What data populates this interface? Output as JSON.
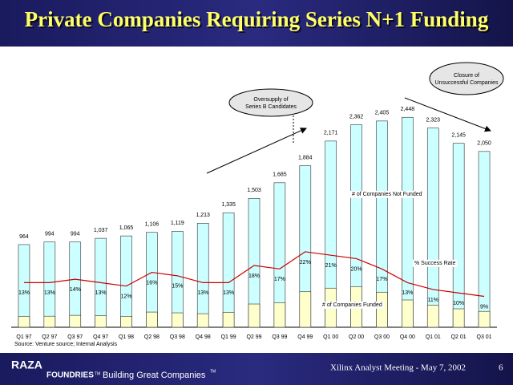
{
  "chart_data": {
    "type": "bar",
    "title": "Private Companies Requiring Series N+1 Funding",
    "categories": [
      "Q1 97",
      "Q2 97",
      "Q3 97",
      "Q4 97",
      "Q1 98",
      "Q2 98",
      "Q3 98",
      "Q4 98",
      "Q1 99",
      "Q2 99",
      "Q3 99",
      "Q4 99",
      "Q1 00",
      "Q2 00",
      "Q3 00",
      "Q4 00",
      "Q1 01",
      "Q2 01",
      "Q3 01"
    ],
    "series": [
      {
        "name": "# of Companies Not Funded",
        "color": "#ccffff",
        "values": [
          964,
          994,
          994,
          1037,
          1065,
          1106,
          1119,
          1213,
          1335,
          1503,
          1685,
          1884,
          2171,
          2362,
          2405,
          2448,
          2323,
          2145,
          2050
        ],
        "value_labels": [
          "964",
          "994",
          "994",
          "1,037",
          "1,065",
          "1,106",
          "1,119",
          "1,213",
          "1,335",
          "1,503",
          "1,685",
          "1,884",
          "2,171",
          "2,362",
          "2,405",
          "2,448",
          "2,323",
          "2,145",
          "2,050"
        ]
      },
      {
        "name": "# of Companies Funded",
        "color": "#ffffcc",
        "values": [
          125,
          129,
          139,
          135,
          128,
          177,
          168,
          158,
          174,
          271,
          286,
          414,
          456,
          472,
          409,
          318,
          256,
          215,
          185
        ]
      },
      {
        "name": "% Success Rate",
        "color": "#cc0000",
        "axis": "y2",
        "values": [
          13,
          13,
          14,
          13,
          12,
          16,
          15,
          13,
          13,
          18,
          17,
          22,
          21,
          20,
          17,
          13,
          11,
          10,
          9
        ],
        "value_labels": [
          "13%",
          "13%",
          "14%",
          "13%",
          "12%",
          "16%",
          "15%",
          "13%",
          "13%",
          "18%",
          "17%",
          "22%",
          "21%",
          "20%",
          "17%",
          "13%",
          "11%",
          "10%",
          "9%"
        ]
      }
    ],
    "ylim": [
      0,
      2600
    ],
    "y2lim": [
      0,
      65
    ],
    "annotations": [
      "Oversupply of Series B Candidates",
      "Closure of Unsuccessful Companies"
    ],
    "source": "Source: Venture source; Internal Analysis"
  },
  "footer": {
    "logo": "RAZA",
    "logo_sub": "FOUNDRIES",
    "logo_tm": "TM",
    "tagline": "Building Great Companies",
    "tagline_tm": "TM",
    "event": "Xilinx Analyst Meeting - May 7, 2002",
    "page": "6"
  }
}
